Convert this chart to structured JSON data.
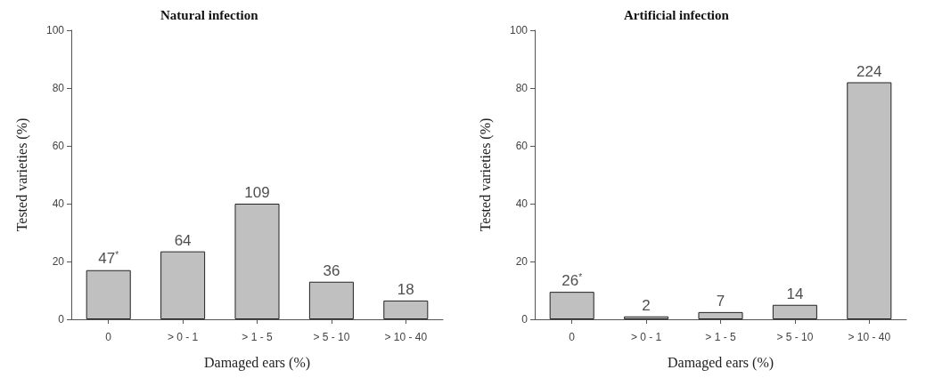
{
  "chart_data": [
    {
      "type": "bar",
      "title": "Natural infection",
      "xlabel": "Damaged ears (%)",
      "ylabel": "Tested varieties (%)",
      "categories": [
        "0",
        "> 0 - 1",
        "> 1 - 5",
        "> 5 - 10",
        "> 10 - 40"
      ],
      "values": [
        17,
        23.5,
        40,
        13,
        6.5
      ],
      "color": "#c0c0c0",
      "ylim": [
        0,
        100
      ],
      "yticks": [
        0,
        20,
        40,
        60,
        80,
        100
      ],
      "grid": false,
      "annotations": [
        {
          "text": "47$^{*}$",
          "x": "0",
          "y": 17
        },
        {
          "text": "64",
          "x": "> 0 - 1",
          "y": 23.5
        },
        {
          "text": "109",
          "x": "> 1 - 5",
          "y": 40
        },
        {
          "text": "36",
          "x": "> 5 - 10",
          "y": 13
        },
        {
          "text": "18",
          "x": "> 10 - 40",
          "y": 6.5
        }
      ]
    },
    {
      "type": "bar",
      "title": "Artificial infection",
      "xlabel": "Damaged ears (%)",
      "ylabel": "Tested varieties (%)",
      "categories": [
        "0",
        "> 0 - 1",
        "> 1 - 5",
        "> 5 - 10",
        "> 10 - 40"
      ],
      "values": [
        9.5,
        1,
        2.5,
        5,
        82
      ],
      "color": "#c0c0c0",
      "ylim": [
        0,
        100
      ],
      "yticks": [
        0,
        20,
        40,
        60,
        80,
        100
      ],
      "grid": false,
      "annotations": [
        {
          "text": "26$^{*}$",
          "x": "0",
          "y": 9.5
        },
        {
          "text": "2",
          "x": "> 0 - 1",
          "y": 1
        },
        {
          "text": "7",
          "x": "> 1 - 5",
          "y": 2.5
        },
        {
          "text": "14",
          "x": "> 5 - 10",
          "y": 5
        },
        {
          "text": "224",
          "x": "> 10 - 40",
          "y": 82
        }
      ]
    }
  ]
}
